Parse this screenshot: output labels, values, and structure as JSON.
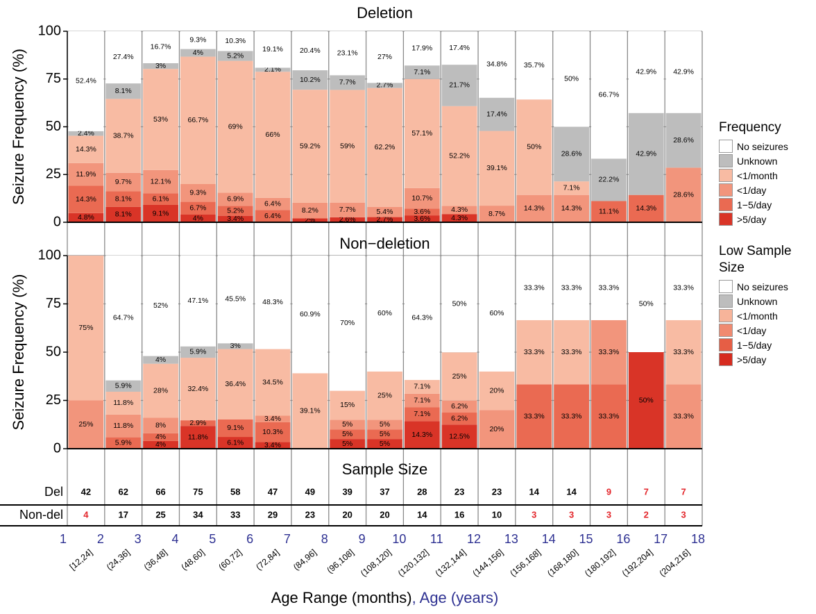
{
  "chart_data": {
    "type": "stacked_bar",
    "y_label": "Seizure Frequency (%)",
    "x_label": "Age Range (months)",
    "x2_label": ", Age (years)",
    "ylim": [
      0,
      100
    ],
    "yticks": [
      0,
      25,
      50,
      75,
      100
    ],
    "grid": true,
    "categories": [
      "[12,24]",
      "(24,36]",
      "(36,48]",
      "(48,60]",
      "(60,72]",
      "(72,84]",
      "(84,96]",
      "(96,108]",
      "(108,120]",
      "(120,132]",
      "(132,144]",
      "(144,156]",
      "(156,168]",
      "(168,180]",
      "(180,192]",
      "(192,204]",
      "(204,216]"
    ],
    "age_years": [
      1,
      2,
      3,
      4,
      5,
      6,
      7,
      8,
      9,
      10,
      11,
      12,
      13,
      14,
      15,
      16,
      17,
      18
    ],
    "legends": [
      {
        "title": "Frequency",
        "colors": [
          "#ffffff",
          "#bdbdbd",
          "#f8bba3",
          "#f2957c",
          "#ea6a52",
          "#d93427"
        ]
      },
      {
        "title": "Low Sample Size",
        "colors": [
          "#ffffff",
          "#bdbdbd",
          "#f7b49a",
          "#f08a70",
          "#e65e45",
          "#d62b1f"
        ]
      }
    ],
    "panels": [
      {
        "title": "Deletion",
        "series": [
          {
            "name": "No seizures",
            "color": "#ffffff",
            "values": [
              52.4,
              27.4,
              16.7,
              9.3,
              10.3,
              19.1,
              20.4,
              23.1,
              27,
              17.9,
              17.4,
              34.8,
              35.7,
              50,
              66.7,
              42.9,
              42.9
            ],
            "value_labels": [
              "52.4%",
              "27.4%",
              "16.7%",
              "9.3%",
              "10.3%",
              "19.1%",
              "20.4%",
              "23.1%",
              "27%",
              "17.9%",
              "17.4%",
              "34.8%",
              "35.7%",
              "50%",
              "66.7%",
              "42.9%",
              "42.9%"
            ]
          },
          {
            "name": "Unknown",
            "color": "#bdbdbd",
            "values": [
              2.4,
              8.1,
              3,
              4,
              5.2,
              2.1,
              10.2,
              7.7,
              2.7,
              7.1,
              21.7,
              17.4,
              null,
              28.6,
              22.2,
              42.9,
              28.6
            ],
            "value_labels": [
              "2.4%",
              "8.1%",
              "3%",
              "4%",
              "5.2%",
              "2.1%",
              "10.2%",
              "7.7%",
              "2.7%",
              "7.1%",
              "21.7%",
              "17.4%",
              null,
              "28.6%",
              "22.2%",
              "42.9%",
              "28.6%"
            ]
          },
          {
            "name": "<1/month",
            "color": "#f8bba3",
            "values": [
              14.3,
              38.7,
              53,
              66.7,
              69,
              66,
              59.2,
              59,
              62.2,
              57.1,
              52.2,
              39.1,
              50,
              7.1,
              null,
              null,
              null
            ],
            "value_labels": [
              "14.3%",
              "38.7%",
              "53%",
              "66.7%",
              "69%",
              "66%",
              "59.2%",
              "59%",
              "62.2%",
              "57.1%",
              "52.2%",
              "39.1%",
              "50%",
              "7.1%",
              null,
              null,
              null
            ]
          },
          {
            "name": "<1/day",
            "color": "#f2957c",
            "values": [
              11.9,
              9.7,
              12.1,
              9.3,
              6.9,
              6.4,
              8.2,
              7.7,
              5.4,
              10.7,
              4.3,
              8.7,
              14.3,
              14.3,
              null,
              null,
              28.6
            ],
            "value_labels": [
              "11.9%",
              "9.7%",
              "12.1%",
              "9.3%",
              "6.9%",
              "6.4%",
              "8.2%",
              "7.7%",
              "5.4%",
              "10.7%",
              "4.3%",
              "8.7%",
              "14.3%",
              "14.3%",
              null,
              null,
              "28.6%"
            ]
          },
          {
            "name": "1−5/day",
            "color": "#ea6a52",
            "values": [
              14.3,
              8.1,
              6.1,
              6.7,
              5.2,
              6.4,
              null,
              null,
              null,
              3.6,
              null,
              null,
              null,
              null,
              11.1,
              14.3,
              null
            ],
            "value_labels": [
              "14.3%",
              "8.1%",
              "6.1%",
              "6.7%",
              "5.2%",
              "6.4%",
              null,
              null,
              null,
              "3.6%",
              null,
              null,
              null,
              null,
              "11.1%",
              "14.3%",
              null
            ]
          },
          {
            "name": ">5/day",
            "color": "#d93427",
            "values": [
              4.8,
              8.1,
              9.1,
              4,
              3.4,
              null,
              2,
              2.6,
              2.7,
              3.6,
              4.3,
              null,
              null,
              null,
              null,
              null,
              null
            ],
            "value_labels": [
              "4.8%",
              "8.1%",
              "9.1%",
              "4%",
              "3.4%",
              null,
              "2%",
              "2.6%",
              "2.7%",
              "3.6%",
              "4.3%",
              null,
              null,
              null,
              null,
              null,
              null
            ]
          }
        ]
      },
      {
        "title": "Non−deletion",
        "series": [
          {
            "name": "No seizures",
            "color": "#ffffff",
            "values": [
              null,
              64.7,
              52,
              47.1,
              45.5,
              48.3,
              60.9,
              70,
              60,
              64.3,
              50,
              60,
              33.3,
              33.3,
              33.3,
              50,
              33.3
            ],
            "value_labels": [
              null,
              "64.7%",
              "52%",
              "47.1%",
              "45.5%",
              "48.3%",
              "60.9%",
              "70%",
              "60%",
              "64.3%",
              "50%",
              "60%",
              "33.3%",
              "33.3%",
              "33.3%",
              "50%",
              "33.3%"
            ]
          },
          {
            "name": "Unknown",
            "color": "#bdbdbd",
            "values": [
              null,
              5.9,
              4,
              5.9,
              3,
              null,
              null,
              null,
              null,
              null,
              null,
              null,
              null,
              null,
              null,
              null,
              null
            ],
            "value_labels": [
              null,
              "5.9%",
              "4%",
              "5.9%",
              "3%",
              null,
              null,
              null,
              null,
              null,
              null,
              null,
              null,
              null,
              null,
              null,
              null
            ]
          },
          {
            "name": "<1/month",
            "color": "#f8bba3",
            "values": [
              75,
              11.8,
              28,
              32.4,
              36.4,
              34.5,
              39.1,
              15,
              25,
              7.1,
              25,
              20,
              33.3,
              33.3,
              null,
              null,
              33.3
            ],
            "value_labels": [
              "75%",
              "11.8%",
              "28%",
              "32.4%",
              "36.4%",
              "34.5%",
              "39.1%",
              "15%",
              "25%",
              "7.1%",
              "25%",
              "20%",
              "33.3%",
              "33.3%",
              null,
              null,
              "33.3%"
            ]
          },
          {
            "name": "<1/day",
            "color": "#f2957c",
            "values": [
              25,
              11.8,
              8,
              null,
              null,
              3.4,
              null,
              5,
              5,
              7.1,
              6.2,
              20,
              null,
              null,
              33.3,
              null,
              33.3
            ],
            "value_labels": [
              "25%",
              "11.8%",
              "8%",
              null,
              null,
              "3.4%",
              null,
              "5%",
              "5%",
              "7.1%",
              "6.2%",
              "20%",
              null,
              null,
              "33.3%",
              null,
              "33.3%"
            ]
          },
          {
            "name": "1−5/day",
            "color": "#ea6a52",
            "values": [
              null,
              5.9,
              4,
              2.9,
              9.1,
              10.3,
              null,
              5,
              5,
              7.1,
              6.2,
              null,
              33.3,
              33.3,
              33.3,
              null,
              null
            ],
            "value_labels": [
              null,
              "5.9%",
              "4%",
              "2.9%",
              "9.1%",
              "10.3%",
              null,
              "5%",
              "5%",
              "7.1%",
              "6.2%",
              null,
              "33.3%",
              "33.3%",
              "33.3%",
              null,
              null
            ]
          },
          {
            "name": ">5/day",
            "color": "#d93427",
            "values": [
              null,
              null,
              4,
              11.8,
              6.1,
              3.4,
              null,
              5,
              5,
              14.3,
              12.5,
              null,
              null,
              null,
              null,
              50,
              null
            ],
            "value_labels": [
              null,
              null,
              "4%",
              "11.8%",
              "6.1%",
              "3.4%",
              null,
              "5%",
              "5%",
              "14.3%",
              "12.5%",
              null,
              null,
              null,
              null,
              "50%",
              null
            ]
          }
        ]
      }
    ],
    "sample_size": {
      "title": "Sample Size",
      "rows": [
        {
          "label": "Del",
          "values": [
            42,
            62,
            66,
            75,
            58,
            47,
            49,
            39,
            37,
            28,
            23,
            23,
            14,
            14,
            9,
            7,
            7
          ],
          "colors": [
            "#000",
            "#000",
            "#000",
            "#000",
            "#000",
            "#000",
            "#000",
            "#000",
            "#000",
            "#000",
            "#000",
            "#000",
            "#000",
            "#000",
            "#e3262b",
            "#e3262b",
            "#e3262b"
          ]
        },
        {
          "label": "Non-del",
          "values": [
            4,
            17,
            25,
            34,
            33,
            29,
            23,
            20,
            20,
            14,
            16,
            10,
            3,
            3,
            3,
            2,
            3
          ],
          "colors": [
            "#e3262b",
            "#000",
            "#000",
            "#000",
            "#000",
            "#000",
            "#000",
            "#000",
            "#000",
            "#000",
            "#000",
            "#000",
            "#e3262b",
            "#e3262b",
            "#e3262b",
            "#e3262b",
            "#e3262b"
          ]
        }
      ]
    }
  }
}
